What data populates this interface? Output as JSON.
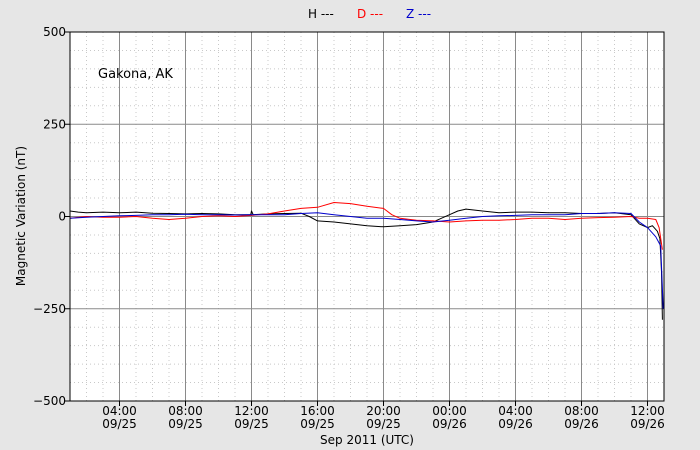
{
  "chart_data": {
    "type": "line",
    "title": "",
    "xlabel": "Sep 2011 (UTC)",
    "ylabel": "Magnetic Variation (nT)",
    "ylim": [
      -500,
      500
    ],
    "xlim_hours": [
      1,
      37
    ],
    "grid": true,
    "legend_position": "top-center",
    "annotation": "Gakona, AK",
    "y_ticks": [
      {
        "value": 500,
        "label": "500"
      },
      {
        "value": 250,
        "label": "250"
      },
      {
        "value": 0,
        "label": "0"
      },
      {
        "value": -250,
        "label": "−250"
      },
      {
        "value": -500,
        "label": "−500"
      }
    ],
    "x_ticks": [
      {
        "hour": 4,
        "time": "04:00",
        "date": "09/25"
      },
      {
        "hour": 8,
        "time": "08:00",
        "date": "09/25"
      },
      {
        "hour": 12,
        "time": "12:00",
        "date": "09/25"
      },
      {
        "hour": 16,
        "time": "16:00",
        "date": "09/25"
      },
      {
        "hour": 20,
        "time": "20:00",
        "date": "09/25"
      },
      {
        "hour": 24,
        "time": "00:00",
        "date": "09/26"
      },
      {
        "hour": 28,
        "time": "04:00",
        "date": "09/26"
      },
      {
        "hour": 32,
        "time": "08:00",
        "date": "09/26"
      },
      {
        "hour": 36,
        "time": "12:00",
        "date": "09/26"
      }
    ],
    "series": [
      {
        "name": "H",
        "legend_label": "H ---",
        "color": "#000000",
        "points": [
          [
            1,
            15
          ],
          [
            1.5,
            12
          ],
          [
            2,
            10
          ],
          [
            3,
            12
          ],
          [
            4,
            10
          ],
          [
            5,
            12
          ],
          [
            6,
            9
          ],
          [
            7,
            8
          ],
          [
            8,
            7
          ],
          [
            9,
            8
          ],
          [
            10,
            7
          ],
          [
            11,
            5
          ],
          [
            11.95,
            5
          ],
          [
            12,
            15
          ],
          [
            12.1,
            5
          ],
          [
            13,
            7
          ],
          [
            14,
            8
          ],
          [
            15,
            9
          ],
          [
            15.5,
            0
          ],
          [
            16,
            -12
          ],
          [
            17,
            -15
          ],
          [
            18,
            -20
          ],
          [
            19,
            -25
          ],
          [
            20,
            -28
          ],
          [
            21,
            -25
          ],
          [
            22,
            -22
          ],
          [
            23,
            -15
          ],
          [
            23.5,
            -5
          ],
          [
            24,
            5
          ],
          [
            24.5,
            15
          ],
          [
            25,
            20
          ],
          [
            26,
            15
          ],
          [
            27,
            10
          ],
          [
            28,
            12
          ],
          [
            29,
            12
          ],
          [
            30,
            10
          ],
          [
            31,
            10
          ],
          [
            32,
            8
          ],
          [
            33,
            8
          ],
          [
            34,
            10
          ],
          [
            35,
            5
          ],
          [
            35.5,
            -20
          ],
          [
            36,
            -30
          ],
          [
            36.3,
            -25
          ],
          [
            36.6,
            -40
          ],
          [
            36.75,
            -60
          ],
          [
            36.85,
            -150
          ],
          [
            36.9,
            -280
          ]
        ]
      },
      {
        "name": "D",
        "legend_label": "D ---",
        "color": "#ff0000",
        "points": [
          [
            1,
            -5
          ],
          [
            2,
            0
          ],
          [
            3,
            -2
          ],
          [
            4,
            -2
          ],
          [
            5,
            0
          ],
          [
            6,
            -5
          ],
          [
            7,
            -8
          ],
          [
            8,
            -5
          ],
          [
            9,
            0
          ],
          [
            10,
            2
          ],
          [
            11,
            0
          ],
          [
            12,
            3
          ],
          [
            13,
            7
          ],
          [
            14,
            15
          ],
          [
            15,
            22
          ],
          [
            16,
            25
          ],
          [
            17,
            38
          ],
          [
            18,
            35
          ],
          [
            19,
            28
          ],
          [
            20,
            22
          ],
          [
            20.5,
            5
          ],
          [
            21,
            -5
          ],
          [
            22,
            -10
          ],
          [
            23,
            -12
          ],
          [
            24,
            -15
          ],
          [
            25,
            -12
          ],
          [
            26,
            -10
          ],
          [
            27,
            -10
          ],
          [
            28,
            -8
          ],
          [
            29,
            -5
          ],
          [
            30,
            -5
          ],
          [
            31,
            -8
          ],
          [
            32,
            -5
          ],
          [
            33,
            -3
          ],
          [
            34,
            -2
          ],
          [
            35,
            0
          ],
          [
            35.5,
            -5
          ],
          [
            36,
            -5
          ],
          [
            36.5,
            -8
          ],
          [
            36.7,
            -30
          ],
          [
            36.9,
            -90
          ]
        ]
      },
      {
        "name": "Z",
        "legend_label": "Z ---",
        "color": "#0000cc",
        "points": [
          [
            1,
            -5
          ],
          [
            2,
            -2
          ],
          [
            3,
            0
          ],
          [
            4,
            2
          ],
          [
            5,
            3
          ],
          [
            6,
            5
          ],
          [
            7,
            5
          ],
          [
            8,
            6
          ],
          [
            9,
            5
          ],
          [
            10,
            5
          ],
          [
            11,
            4
          ],
          [
            12,
            5
          ],
          [
            13,
            5
          ],
          [
            14,
            5
          ],
          [
            15,
            8
          ],
          [
            16,
            10
          ],
          [
            17,
            5
          ],
          [
            18,
            0
          ],
          [
            19,
            -5
          ],
          [
            20,
            -5
          ],
          [
            21,
            -8
          ],
          [
            22,
            -12
          ],
          [
            23,
            -15
          ],
          [
            24,
            -10
          ],
          [
            25,
            -5
          ],
          [
            26,
            0
          ],
          [
            27,
            2
          ],
          [
            28,
            3
          ],
          [
            29,
            5
          ],
          [
            30,
            5
          ],
          [
            31,
            5
          ],
          [
            32,
            8
          ],
          [
            33,
            8
          ],
          [
            34,
            10
          ],
          [
            35,
            8
          ],
          [
            35.5,
            -15
          ],
          [
            36,
            -30
          ],
          [
            36.5,
            -55
          ],
          [
            36.8,
            -80
          ],
          [
            36.95,
            -250
          ]
        ]
      }
    ]
  }
}
